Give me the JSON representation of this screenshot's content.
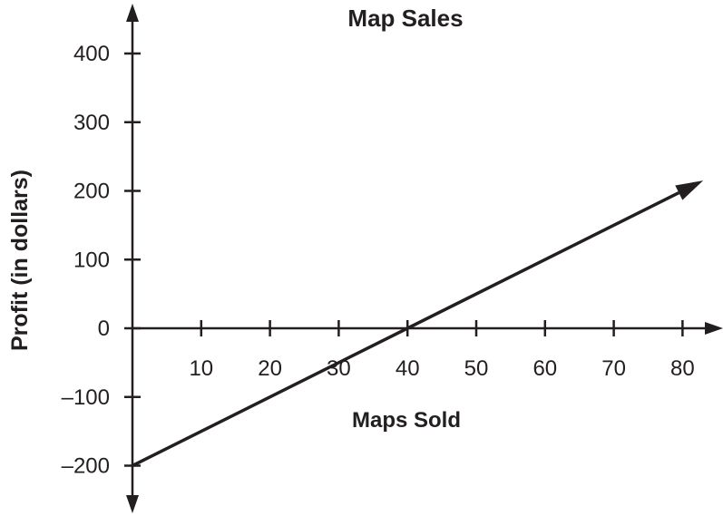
{
  "chart_data": {
    "type": "line",
    "title": "Map Sales",
    "xlabel": "Maps Sold",
    "ylabel": "Profit (in dollars)",
    "x_ticks": [
      "10",
      "20",
      "30",
      "40",
      "50",
      "60",
      "70",
      "80"
    ],
    "y_ticks": [
      "400",
      "300",
      "200",
      "100",
      "0",
      "–100",
      "–200"
    ],
    "xlim": [
      0,
      85
    ],
    "ylim": [
      -200,
      400
    ],
    "grid": false,
    "series": [
      {
        "x": [
          0,
          83
        ],
        "y": [
          -200,
          215
        ]
      }
    ],
    "colors": {
      "ink": "#231f20"
    }
  }
}
